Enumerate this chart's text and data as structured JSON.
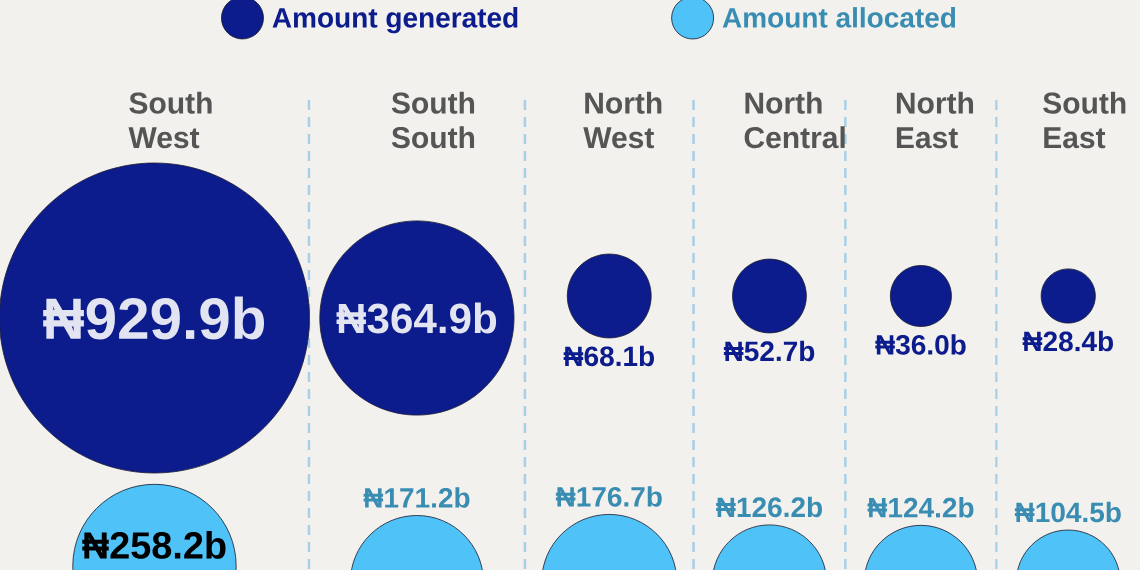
{
  "chart_data": {
    "type": "other",
    "categories": [
      "South West",
      "South South",
      "North West",
      "North Central",
      "North East",
      "South East"
    ],
    "series": [
      {
        "name": "Amount generated",
        "color": "#0c1c8c",
        "values": [
          929.9,
          364.9,
          68.1,
          52.7,
          36.0,
          28.4
        ],
        "value_labels": [
          "₦929.9b",
          "₦364.9b",
          "₦68.1b",
          "₦52.7b",
          "₦36.0b",
          "₦28.4b"
        ]
      },
      {
        "name": "Amount allocated",
        "color": "#4fc3f7",
        "values": [
          258.2,
          171.2,
          176.7,
          126.2,
          124.2,
          104.5
        ],
        "value_labels": [
          "₦258.2b",
          "₦171.2b",
          "₦176.7b",
          "₦126.2b",
          "₦124.2b",
          "₦104.5b"
        ]
      }
    ],
    "legend": "top"
  }
}
